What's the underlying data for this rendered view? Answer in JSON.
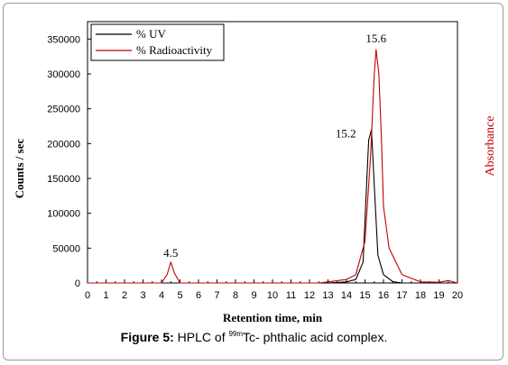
{
  "chart_data": {
    "type": "line",
    "xlabel": "Retention time, min",
    "ylabel": "Counts / sec",
    "y2label": "Absorbance",
    "xlim": [
      0,
      20
    ],
    "ylim": [
      0,
      375000
    ],
    "xticks": [
      0,
      1,
      2,
      3,
      4,
      5,
      6,
      7,
      8,
      9,
      10,
      11,
      12,
      13,
      14,
      15,
      16,
      17,
      18,
      19,
      20
    ],
    "yticks": [
      0,
      50000,
      100000,
      150000,
      200000,
      250000,
      300000,
      350000
    ],
    "grid": false,
    "legend": "top-left",
    "series": [
      {
        "name": "% UV",
        "color": "#000000",
        "x": [
          0,
          4.2,
          4.5,
          4.8,
          13.0,
          14.0,
          14.5,
          14.9,
          15.1,
          15.2,
          15.35,
          15.5,
          15.7,
          16.0,
          16.5,
          17.0,
          20.0
        ],
        "y": [
          0,
          0,
          0,
          0,
          0,
          1500,
          5000,
          30000,
          150000,
          205000,
          220000,
          140000,
          40000,
          12000,
          2000,
          0,
          0
        ]
      },
      {
        "name": "% Radioactivity",
        "color": "#c00000",
        "x": [
          0,
          4.0,
          4.3,
          4.5,
          4.7,
          5.0,
          12.5,
          13.0,
          14.0,
          14.5,
          15.0,
          15.3,
          15.5,
          15.6,
          15.75,
          15.9,
          16.0,
          16.3,
          17.0,
          18.0,
          19.0,
          19.5,
          20.0
        ],
        "y": [
          0,
          0,
          12000,
          30000,
          14000,
          0,
          0,
          1500,
          5000,
          12000,
          60000,
          180000,
          300000,
          335000,
          300000,
          200000,
          110000,
          50000,
          12000,
          1500,
          1000,
          3500,
          0
        ]
      }
    ],
    "annotations": [
      {
        "text": "4.5",
        "x": 4.5,
        "y": 30000
      },
      {
        "text": "15.2",
        "x": 15.2,
        "y": 205000
      },
      {
        "text": "15.6",
        "x": 15.6,
        "y": 335000
      }
    ]
  },
  "caption": {
    "label": "Figure 5:",
    "text_before": " HPLC of ",
    "superscript": "99m",
    "text_after": "Tc- phthalic acid complex."
  }
}
